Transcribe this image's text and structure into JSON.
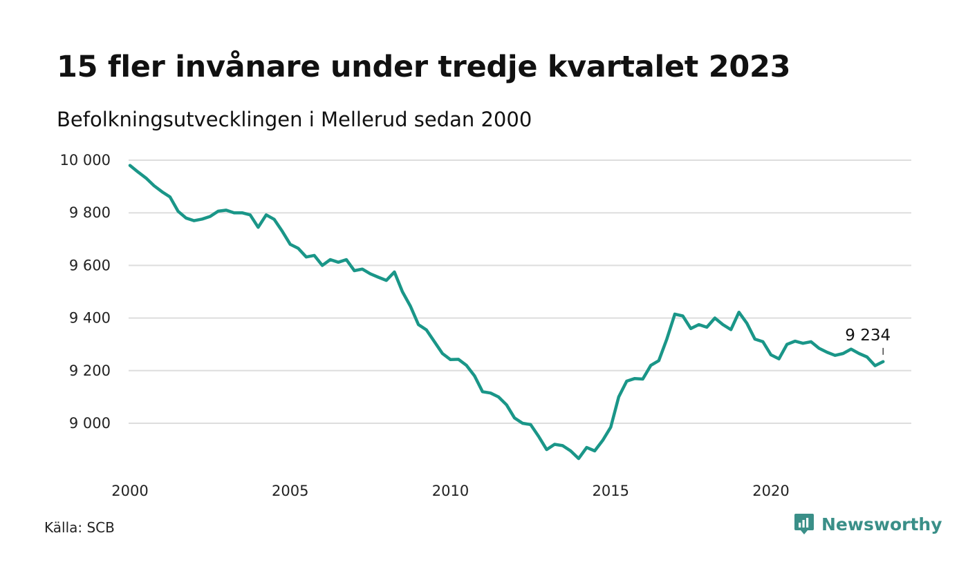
{
  "header": {
    "title": "15 fler invånare under tredje kvartalet 2023",
    "subtitle": "Befolkningsutvecklingen i Mellerud sedan 2000"
  },
  "footer": {
    "source": "Källa: SCB",
    "brand_name": "Newsworthy",
    "brand_icon": "newsworthy-logo-icon"
  },
  "colors": {
    "line": "#1a9688",
    "grid": "#dddddd",
    "brand": "#3a8f88"
  },
  "chart_data": {
    "type": "line",
    "title": "15 fler invånare under tredje kvartalet 2023",
    "subtitle": "Befolkningsutvecklingen i Mellerud sedan 2000",
    "xlabel": "",
    "ylabel": "",
    "ylim": [
      8840,
      10000
    ],
    "y_ticks": [
      10000,
      9800,
      9600,
      9400,
      9200,
      9000
    ],
    "y_tick_labels": [
      "10 000",
      "9 800",
      "9 600",
      "9 400",
      "9 200",
      "9 000"
    ],
    "x_ticks": [
      2000,
      2005,
      2010,
      2015,
      2020
    ],
    "x_tick_labels": [
      "2000",
      "2005",
      "2010",
      "2015",
      "2020"
    ],
    "grid": "horizontal",
    "legend": "none",
    "last_value_label": "9 234",
    "x": [
      "2000 Q1",
      "2000 Q2",
      "2000 Q3",
      "2000 Q4",
      "2001 Q1",
      "2001 Q2",
      "2001 Q3",
      "2001 Q4",
      "2002 Q1",
      "2002 Q2",
      "2002 Q3",
      "2002 Q4",
      "2003 Q1",
      "2003 Q2",
      "2003 Q3",
      "2003 Q4",
      "2004 Q1",
      "2004 Q2",
      "2004 Q3",
      "2004 Q4",
      "2005 Q1",
      "2005 Q2",
      "2005 Q3",
      "2005 Q4",
      "2006 Q1",
      "2006 Q2",
      "2006 Q3",
      "2006 Q4",
      "2007 Q1",
      "2007 Q2",
      "2007 Q3",
      "2007 Q4",
      "2008 Q1",
      "2008 Q2",
      "2008 Q3",
      "2008 Q4",
      "2009 Q1",
      "2009 Q2",
      "2009 Q3",
      "2009 Q4",
      "2010 Q1",
      "2010 Q2",
      "2010 Q3",
      "2010 Q4",
      "2011 Q1",
      "2011 Q2",
      "2011 Q3",
      "2011 Q4",
      "2012 Q1",
      "2012 Q2",
      "2012 Q3",
      "2012 Q4",
      "2013 Q1",
      "2013 Q2",
      "2013 Q3",
      "2013 Q4",
      "2014 Q1",
      "2014 Q2",
      "2014 Q3",
      "2014 Q4",
      "2015 Q1",
      "2015 Q2",
      "2015 Q3",
      "2015 Q4",
      "2016 Q1",
      "2016 Q2",
      "2016 Q3",
      "2016 Q4",
      "2017 Q1",
      "2017 Q2",
      "2017 Q3",
      "2017 Q4",
      "2018 Q1",
      "2018 Q2",
      "2018 Q3",
      "2018 Q4",
      "2019 Q1",
      "2019 Q2",
      "2019 Q3",
      "2019 Q4",
      "2020 Q1",
      "2020 Q2",
      "2020 Q3",
      "2020 Q4",
      "2021 Q1",
      "2021 Q2",
      "2021 Q3",
      "2021 Q4",
      "2022 Q1",
      "2022 Q2",
      "2022 Q3",
      "2022 Q4",
      "2023 Q1",
      "2023 Q2",
      "2023 Q3"
    ],
    "values": [
      9980,
      9955,
      9932,
      9903,
      9880,
      9860,
      9806,
      9780,
      9770,
      9776,
      9786,
      9806,
      9810,
      9800,
      9800,
      9792,
      9745,
      9792,
      9775,
      9730,
      9680,
      9665,
      9632,
      9638,
      9600,
      9622,
      9612,
      9622,
      9580,
      9586,
      9568,
      9555,
      9543,
      9575,
      9500,
      9445,
      9375,
      9355,
      9310,
      9265,
      9242,
      9243,
      9220,
      9180,
      9120,
      9115,
      9100,
      9070,
      9020,
      9000,
      8995,
      8950,
      8900,
      8920,
      8915,
      8895,
      8866,
      8908,
      8895,
      8935,
      8985,
      9100,
      9160,
      9170,
      9168,
      9220,
      9238,
      9320,
      9415,
      9408,
      9360,
      9375,
      9365,
      9400,
      9375,
      9356,
      9422,
      9380,
      9320,
      9310,
      9260,
      9245,
      9300,
      9312,
      9304,
      9310,
      9285,
      9270,
      9258,
      9265,
      9282,
      9265,
      9252,
      9219,
      9234
    ]
  }
}
